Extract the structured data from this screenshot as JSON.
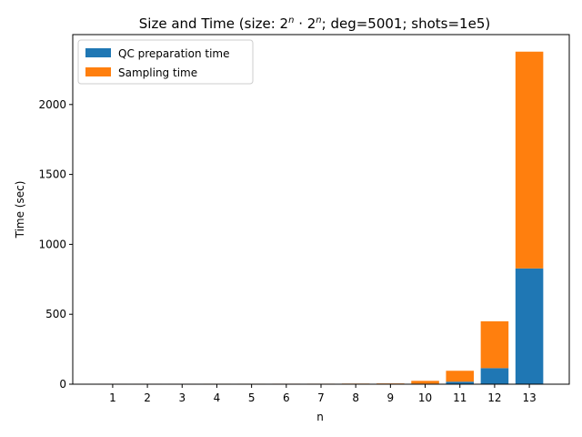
{
  "chart_data": {
    "type": "bar",
    "stacked": true,
    "title": {
      "prefix": "Size and Time (size: 2",
      "sup1": "n",
      "mid": " · 2",
      "sup2": "n",
      "suffix": "; deg=5001; shots=1e5)"
    },
    "xlabel": "n",
    "ylabel": "Time (sec)",
    "categories": [
      "1",
      "2",
      "3",
      "4",
      "5",
      "6",
      "7",
      "8",
      "9",
      "10",
      "11",
      "12",
      "13"
    ],
    "ylim": [
      0,
      2500
    ],
    "yticks": [
      0,
      500,
      1000,
      1500,
      2000
    ],
    "legend_position": "top-left",
    "series": [
      {
        "name": "QC preparation time",
        "color": "#1f77b4",
        "values": [
          0.3,
          0.3,
          0.3,
          0.4,
          0.4,
          0.5,
          0.6,
          0.8,
          1.2,
          4,
          18,
          115,
          828
        ]
      },
      {
        "name": "Sampling time",
        "color": "#ff7f0e",
        "values": [
          3,
          3,
          3,
          3,
          3,
          3,
          3,
          3.5,
          4,
          20,
          78,
          335,
          1550
        ]
      }
    ]
  }
}
